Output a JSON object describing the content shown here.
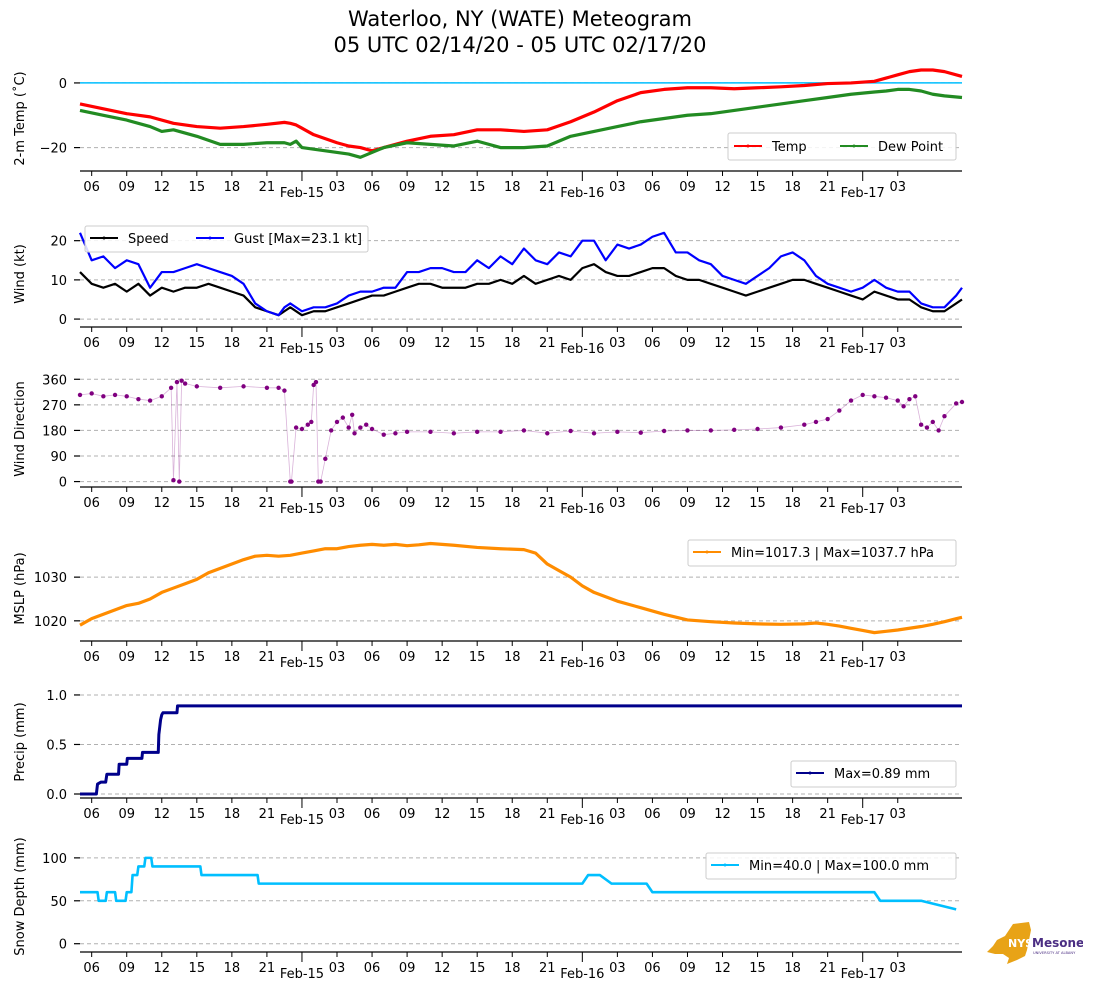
{
  "title": {
    "line1": "Waterloo, NY (WATE) Meteogram",
    "line2": "05 UTC 02/14/20 - 05 UTC 02/17/20"
  },
  "logo": {
    "name": "nys-mesonet-logo",
    "text_main": "NYS",
    "text_brand": "Mesonet",
    "text_sub": "UNIVERSITY AT ALBANY",
    "colors": {
      "state": "#E8A317",
      "brand": "#4B2E83"
    }
  },
  "chart_data": [
    {
      "id": "temp",
      "type": "line",
      "ylabel": "2-m Temp ($^\\circ$C)",
      "ylabel_display": "2-m Temp (˚C)",
      "ylim": [
        -26,
        4
      ],
      "yticks": [
        0,
        -20
      ],
      "ytick_labels": [
        "0",
        "−20"
      ],
      "grid": "y-dashed",
      "reference_line": {
        "y": 0,
        "color": "#00BFFF"
      },
      "legend": {
        "placement": "lower-right",
        "ncol": 2
      },
      "series": [
        {
          "name": "Temp",
          "color": "#FF0000",
          "x": [
            0,
            2,
            4,
            6,
            8,
            10,
            12,
            14,
            16,
            17.5,
            18,
            18.5,
            19,
            20,
            22,
            23,
            24,
            25,
            26,
            28,
            30,
            32,
            34,
            36,
            38,
            40,
            42,
            44,
            46,
            48,
            50,
            52,
            54,
            56,
            58,
            60,
            62,
            64,
            66,
            68,
            69,
            70,
            71,
            72,
            73,
            74,
            75.5
          ],
          "y": [
            -6.5,
            -8,
            -9.5,
            -10.5,
            -12.5,
            -13.5,
            -14,
            -13.5,
            -12.8,
            -12.2,
            -12.5,
            -13,
            -14,
            -16,
            -18.5,
            -19.5,
            -20,
            -21,
            -20,
            -18,
            -16.5,
            -16,
            -14.5,
            -14.5,
            -15,
            -14.5,
            -12,
            -9,
            -5.5,
            -3,
            -2,
            -1.5,
            -1.5,
            -1.8,
            -1.5,
            -1.2,
            -0.8,
            -0.2,
            0,
            0.5,
            1.5,
            2.5,
            3.5,
            4,
            4,
            3.5,
            2
          ]
        },
        {
          "name": "Dew Point",
          "color": "#228B22",
          "x": [
            0,
            2,
            4,
            6,
            7,
            8,
            10,
            12,
            14,
            16,
            17.5,
            18,
            18.5,
            19,
            20,
            22,
            23,
            24,
            25,
            26,
            28,
            30,
            32,
            34,
            36,
            38,
            40,
            42,
            44,
            46,
            48,
            50,
            52,
            54,
            56,
            58,
            60,
            62,
            64,
            66,
            68,
            69,
            70,
            71,
            72,
            73,
            74,
            75.5
          ],
          "y": [
            -8.5,
            -10,
            -11.5,
            -13.5,
            -15,
            -14.5,
            -16.5,
            -19,
            -19,
            -18.5,
            -18.5,
            -19,
            -18,
            -20,
            -20.5,
            -21.5,
            -22,
            -23,
            -21.5,
            -20,
            -18.5,
            -19,
            -19.5,
            -18,
            -20,
            -20,
            -19.5,
            -16.5,
            -15,
            -13.5,
            -12,
            -11,
            -10,
            -9.5,
            -8.5,
            -7.5,
            -6.5,
            -5.5,
            -4.5,
            -3.5,
            -2.8,
            -2.5,
            -2,
            -2,
            -2.5,
            -3.5,
            -4,
            -4.5
          ]
        }
      ]
    },
    {
      "id": "wind",
      "type": "line",
      "ylabel": "Wind (kt)",
      "ylim": [
        -1,
        24
      ],
      "yticks": [
        0,
        10,
        20
      ],
      "ytick_labels": [
        "0",
        "10",
        "20"
      ],
      "grid": "y-dashed",
      "legend": {
        "placement": "upper-left",
        "ncol": 2
      },
      "series": [
        {
          "name": "Speed",
          "color": "#000000",
          "x": [
            0,
            1,
            2,
            3,
            4,
            5,
            6,
            7,
            8,
            9,
            10,
            11,
            12,
            13,
            14,
            15,
            16,
            17,
            17.5,
            18,
            19,
            20,
            21,
            22,
            23,
            24,
            25,
            26,
            27,
            28,
            29,
            30,
            31,
            32,
            33,
            34,
            35,
            36,
            37,
            38,
            39,
            40,
            41,
            42,
            43,
            44,
            45,
            46,
            47,
            48,
            49,
            50,
            51,
            52,
            53,
            54,
            55,
            56,
            57,
            58,
            59,
            60,
            61,
            62,
            63,
            64,
            65,
            66,
            67,
            68,
            69,
            70,
            71,
            72,
            73,
            74,
            75,
            75.5
          ],
          "y": [
            12,
            9,
            8,
            9,
            7,
            9,
            6,
            8,
            7,
            8,
            8,
            9,
            8,
            7,
            6,
            3,
            2,
            1,
            2,
            3,
            1,
            2,
            2,
            3,
            4,
            5,
            6,
            6,
            7,
            8,
            9,
            9,
            8,
            8,
            8,
            9,
            9,
            10,
            9,
            11,
            9,
            10,
            11,
            10,
            13,
            14,
            12,
            11,
            11,
            12,
            13,
            13,
            11,
            10,
            10,
            9,
            8,
            7,
            6,
            7,
            8,
            9,
            10,
            10,
            9,
            8,
            7,
            6,
            5,
            7,
            6,
            5,
            5,
            3,
            2,
            2,
            4,
            5
          ]
        },
        {
          "name": "Gust [Max=23.1 kt]",
          "color": "#0000FF",
          "x": [
            0,
            1,
            2,
            3,
            4,
            5,
            6,
            7,
            8,
            9,
            10,
            11,
            12,
            13,
            14,
            15,
            16,
            17,
            17.5,
            18,
            19,
            20,
            21,
            22,
            23,
            24,
            25,
            26,
            27,
            28,
            29,
            30,
            31,
            32,
            33,
            34,
            35,
            36,
            37,
            38,
            39,
            40,
            41,
            42,
            43,
            44,
            45,
            46,
            47,
            48,
            49,
            50,
            51,
            52,
            53,
            54,
            55,
            56,
            57,
            58,
            59,
            60,
            61,
            62,
            63,
            64,
            65,
            66,
            67,
            68,
            69,
            70,
            71,
            72,
            73,
            74,
            75,
            75.5
          ],
          "y": [
            22,
            15,
            16,
            13,
            15,
            14,
            8,
            12,
            12,
            13,
            14,
            13,
            12,
            11,
            9,
            4,
            2,
            1,
            3,
            4,
            2,
            3,
            3,
            4,
            6,
            7,
            7,
            8,
            8,
            12,
            12,
            13,
            13,
            12,
            12,
            15,
            13,
            16,
            14,
            18,
            15,
            14,
            17,
            16,
            20,
            20,
            15,
            19,
            18,
            19,
            21,
            22,
            17,
            17,
            15,
            14,
            11,
            10,
            9,
            11,
            13,
            16,
            17,
            15,
            11,
            9,
            8,
            7,
            8,
            10,
            8,
            7,
            7,
            4,
            3,
            3,
            6,
            8
          ]
        }
      ]
    },
    {
      "id": "wdir",
      "type": "scatter",
      "ylabel": "Wind Direction",
      "ylim": [
        -5,
        375
      ],
      "yticks": [
        0,
        90,
        180,
        270,
        360
      ],
      "ytick_labels": [
        "0",
        "90",
        "180",
        "270",
        "360"
      ],
      "grid": "y-dashed",
      "series": [
        {
          "name": "Wind Direction",
          "color": "#800080",
          "x": [
            0,
            1,
            2,
            3,
            4,
            5,
            6,
            7,
            7.8,
            8,
            8.3,
            8.5,
            8.7,
            9,
            10,
            12,
            14,
            16,
            17,
            17.5,
            18,
            18.1,
            18.5,
            19,
            19.5,
            19.8,
            20,
            20.2,
            20.4,
            20.6,
            21,
            21.5,
            22,
            22.5,
            23,
            23.3,
            23.5,
            24,
            24.5,
            25,
            26,
            27,
            28,
            30,
            32,
            34,
            36,
            38,
            40,
            42,
            44,
            46,
            48,
            50,
            52,
            54,
            56,
            58,
            60,
            62,
            63,
            64,
            65,
            66,
            67,
            68,
            69,
            70,
            70.5,
            71,
            71.5,
            72,
            72.5,
            73,
            73.5,
            74,
            75,
            75.5
          ],
          "y": [
            305,
            310,
            300,
            305,
            300,
            290,
            285,
            300,
            330,
            5,
            350,
            0,
            355,
            345,
            335,
            330,
            335,
            330,
            330,
            320,
            0,
            0,
            190,
            185,
            200,
            210,
            340,
            350,
            0,
            0,
            80,
            180,
            210,
            225,
            190,
            235,
            170,
            190,
            200,
            185,
            165,
            170,
            175,
            175,
            170,
            175,
            175,
            180,
            170,
            178,
            170,
            175,
            172,
            178,
            180,
            180,
            182,
            185,
            190,
            200,
            210,
            220,
            250,
            285,
            305,
            300,
            295,
            285,
            265,
            290,
            300,
            200,
            190,
            210,
            180,
            230,
            275,
            280
          ]
        }
      ]
    },
    {
      "id": "mslp",
      "type": "line",
      "ylabel": "MSLP (hPa)",
      "ylim": [
        1016.3,
        1038.5
      ],
      "yticks": [
        1020,
        1030
      ],
      "ytick_labels": [
        "1020",
        "1030"
      ],
      "grid": "y-dashed",
      "legend": {
        "placement": "upper-right",
        "label": "Min=1017.3 | Max=1037.7 hPa"
      },
      "series": [
        {
          "name": "Min=1017.3 | Max=1037.7 hPa",
          "color": "#FF8C00",
          "x": [
            0,
            1,
            2,
            3,
            4,
            5,
            6,
            7,
            8,
            9,
            10,
            11,
            12,
            13,
            14,
            15,
            16,
            17,
            18,
            19,
            20,
            21,
            22,
            23,
            24,
            25,
            26,
            27,
            28,
            29,
            30,
            32,
            34,
            36,
            38,
            39,
            40,
            41,
            42,
            43,
            44,
            46,
            48,
            50,
            52,
            54,
            56,
            58,
            60,
            62,
            63,
            64,
            65,
            66,
            67,
            68,
            69,
            70,
            71,
            72,
            73,
            74,
            75,
            75.5
          ],
          "y": [
            1019,
            1020.5,
            1021.5,
            1022.5,
            1023.5,
            1024,
            1025,
            1026.5,
            1027.5,
            1028.5,
            1029.5,
            1031,
            1032,
            1033,
            1034,
            1034.8,
            1035,
            1034.8,
            1035,
            1035.5,
            1036,
            1036.5,
            1036.5,
            1037,
            1037.3,
            1037.5,
            1037.3,
            1037.5,
            1037.2,
            1037.4,
            1037.7,
            1037.3,
            1036.8,
            1036.5,
            1036.3,
            1035.5,
            1033,
            1031.5,
            1030,
            1028,
            1026.5,
            1024.5,
            1023,
            1021.5,
            1020.2,
            1019.8,
            1019.5,
            1019.3,
            1019.2,
            1019.3,
            1019.5,
            1019.2,
            1018.8,
            1018.3,
            1017.8,
            1017.3,
            1017.6,
            1017.9,
            1018.3,
            1018.7,
            1019.2,
            1019.8,
            1020.5,
            1020.8
          ]
        }
      ]
    },
    {
      "id": "precip",
      "type": "line",
      "ylabel": "Precip (mm)",
      "ylim": [
        0,
        1.05
      ],
      "yticks": [
        0.0,
        0.5,
        1.0
      ],
      "ytick_labels": [
        "0.0",
        "0.5",
        "1.0"
      ],
      "grid": "y-dashed",
      "legend": {
        "placement": "lower-right",
        "label": "Max=0.89 mm"
      },
      "series": [
        {
          "name": "Max=0.89 mm",
          "color": "#00008B",
          "x": [
            0,
            1.4,
            1.5,
            1.8,
            2.2,
            2.3,
            3.3,
            3.35,
            4.0,
            4.05,
            5.3,
            5.35,
            6.7,
            6.75,
            6.9,
            7.0,
            7.1,
            8.3,
            8.35,
            75.5
          ],
          "y": [
            0,
            0,
            0.1,
            0.12,
            0.12,
            0.2,
            0.2,
            0.3,
            0.3,
            0.36,
            0.36,
            0.42,
            0.42,
            0.6,
            0.75,
            0.8,
            0.82,
            0.82,
            0.89,
            0.89
          ]
        }
      ]
    },
    {
      "id": "snow",
      "type": "line",
      "ylabel": "Snow Depth (mm)",
      "ylim": [
        -5,
        115
      ],
      "yticks": [
        0,
        50,
        100
      ],
      "ytick_labels": [
        "0",
        "50",
        "100"
      ],
      "grid": "y-dashed",
      "legend": {
        "placement": "upper-right",
        "label": "Min=40.0 | Max=100.0 mm"
      },
      "series": [
        {
          "name": "Min=40.0 | Max=100.0 mm",
          "color": "#00BFFF",
          "x": [
            0,
            1.5,
            1.6,
            2.2,
            2.3,
            3.0,
            3.1,
            3.9,
            4.0,
            4.4,
            4.5,
            4.9,
            5.0,
            5.5,
            5.6,
            6.1,
            6.2,
            10.3,
            10.4,
            13.0,
            13.1,
            15.2,
            15.3,
            18.0,
            18.1,
            25.0,
            25.5,
            28.5,
            29.0,
            43.0,
            43.5,
            44.5,
            45.5,
            48.5,
            49.0,
            58.0,
            58.5,
            68.0,
            68.5,
            72.0,
            75.0
          ],
          "y": [
            60,
            60,
            50,
            50,
            60,
            60,
            50,
            50,
            60,
            60,
            80,
            80,
            90,
            90,
            100,
            100,
            90,
            90,
            80,
            80,
            80,
            80,
            70,
            70,
            70,
            70,
            70,
            70,
            70,
            70,
            80,
            80,
            70,
            70,
            60,
            60,
            60,
            60,
            50,
            50,
            40
          ]
        }
      ]
    }
  ],
  "x_axis": {
    "start_label": "05 UTC 02/14/20",
    "hour_ticks": [
      "06",
      "09",
      "12",
      "15",
      "18",
      "21",
      "03",
      "06",
      "09",
      "12",
      "15",
      "18",
      "21",
      "03",
      "06",
      "09",
      "12",
      "15",
      "18",
      "21",
      "03"
    ],
    "hour_tick_offsets_h": [
      1,
      4,
      7,
      10,
      13,
      16,
      22,
      25,
      28,
      31,
      34,
      37,
      40,
      46,
      49,
      52,
      55,
      58,
      61,
      64,
      70
    ],
    "day_ticks": [
      "Feb-15",
      "Feb-16",
      "Feb-17"
    ],
    "day_tick_offsets_h": [
      19,
      43,
      67
    ],
    "xlim_h": [
      0,
      75.5
    ]
  },
  "gridline_color": "#B0B0B0"
}
